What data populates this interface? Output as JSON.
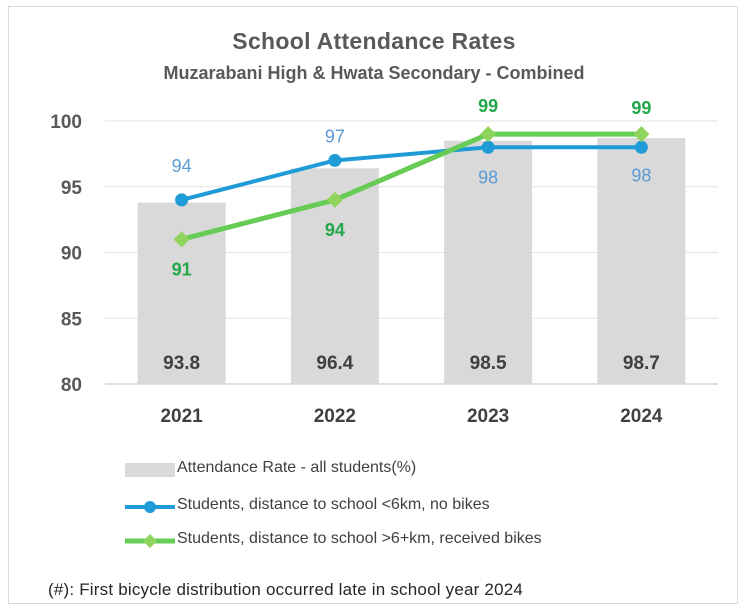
{
  "chart_data": {
    "type": "bar",
    "title": "School Attendance  Rates",
    "subtitle": "Muzarabani High & Hwata Secondary - Combined",
    "categories": [
      "2021",
      "2022",
      "2023",
      "2024"
    ],
    "ylim": [
      80,
      100
    ],
    "yticks": [
      80,
      85,
      90,
      95,
      100
    ],
    "grid": true,
    "legend_position": "bottom",
    "bars": {
      "name": "Attendance Rate - all students(%)",
      "values": [
        93.8,
        96.4,
        98.5,
        98.7
      ],
      "color": "#d9d9d9",
      "labels": [
        "93.8",
        "96.4",
        "98.5",
        "98.7"
      ]
    },
    "series": [
      {
        "name": "Students, distance to school <6km, no bikes",
        "type": "line",
        "values": [
          94,
          97,
          98,
          98
        ],
        "labels": [
          "94",
          "97",
          "98",
          "98"
        ],
        "color": "#1f9bd7",
        "label_color": "#5b9bd5"
      },
      {
        "name": "Students, distance to school >6+km, received bikes",
        "type": "line",
        "values": [
          91,
          94,
          99,
          99
        ],
        "labels": [
          "91",
          "94",
          "99",
          "99"
        ],
        "color": "#66cc55",
        "label_color": "#22a84a"
      }
    ]
  },
  "footnote": "(#):  First bicycle distribution  occurred late  in school year 2024"
}
